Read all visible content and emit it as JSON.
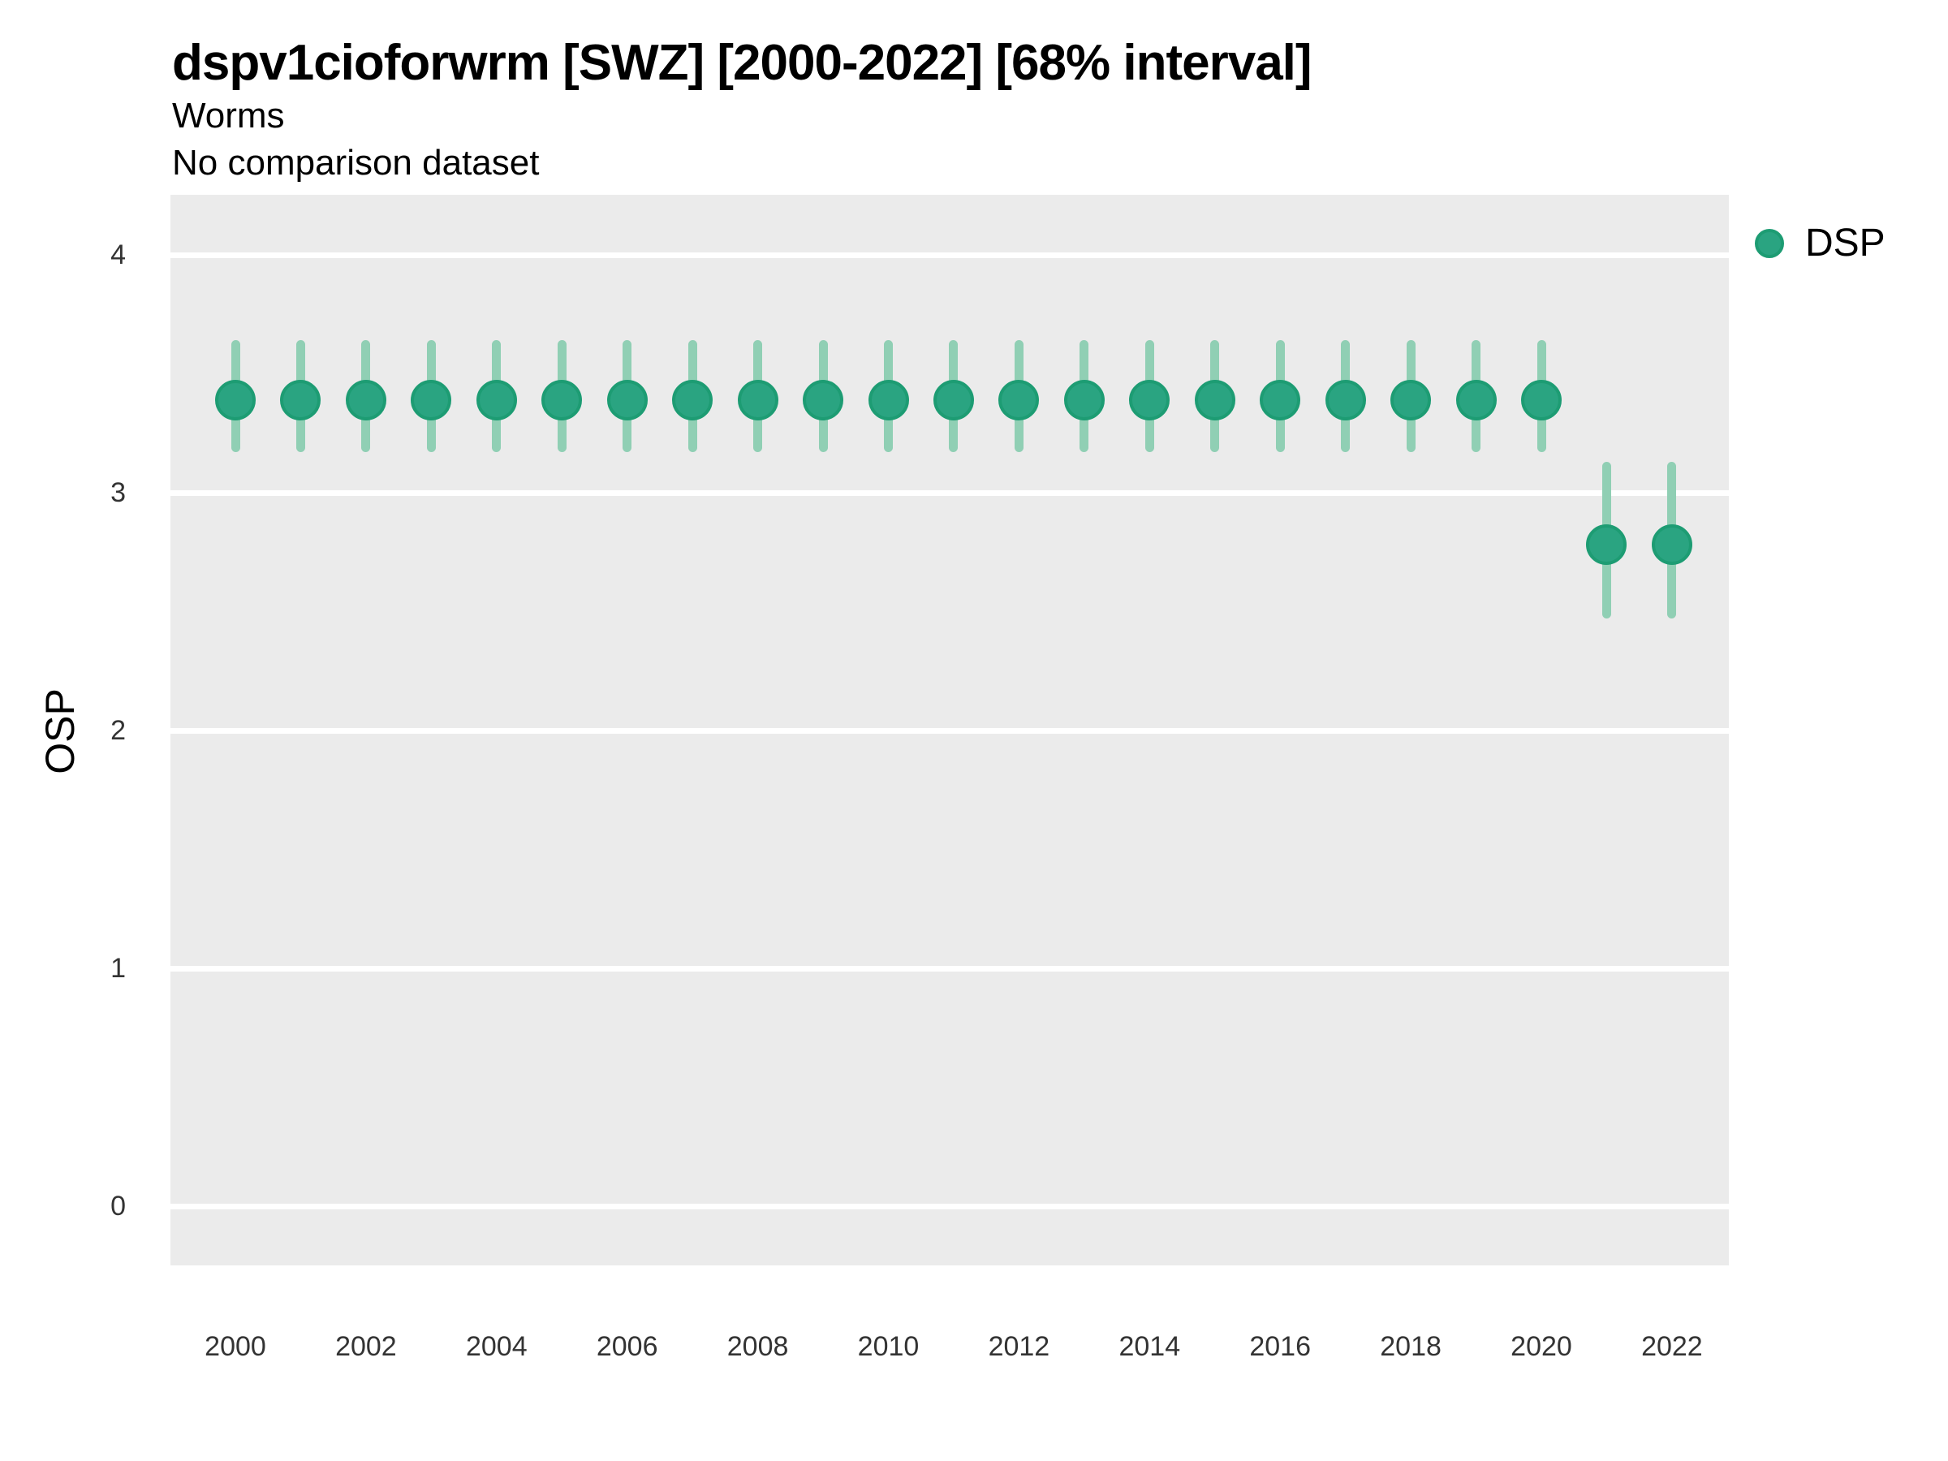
{
  "header": {
    "title": "dspv1cioforwrm [SWZ] [2000-2022] [68% interval]",
    "subtitle": "Worms",
    "note": "No comparison dataset"
  },
  "legend": {
    "items": [
      {
        "label": "DSP",
        "color": "#2AA481"
      }
    ],
    "position": "right"
  },
  "colors": {
    "point_fill": "#2AA481",
    "point_border": "#1D9C73",
    "interval_bar": "#90CFB4",
    "panel_background": "#EBEBEB",
    "gridline": "#FFFFFF",
    "title_text": "#000000",
    "tick_text": "#333333"
  },
  "chart_data": {
    "type": "scatter",
    "title": "dspv1cioforwrm [SWZ] [2000-2022] [68% interval]",
    "subtitle": "Worms",
    "note": "No comparison dataset",
    "interval_label": "68% interval",
    "xlabel": "",
    "ylabel": "OSP",
    "ylim": [
      -0.25,
      4.25
    ],
    "xlim": [
      1999.0,
      2022.9
    ],
    "y_ticks": [
      0,
      1,
      2,
      3,
      4
    ],
    "x_ticks": [
      2000,
      2002,
      2004,
      2006,
      2008,
      2010,
      2012,
      2014,
      2016,
      2018,
      2020,
      2022
    ],
    "grid": "major-horizontal-only",
    "legend_position": "right",
    "series": [
      {
        "name": "DSP",
        "color": "#2AA481",
        "interval_color": "#90CFB4",
        "x": [
          2000,
          2001,
          2002,
          2003,
          2004,
          2005,
          2006,
          2007,
          2008,
          2009,
          2010,
          2011,
          2012,
          2013,
          2014,
          2015,
          2016,
          2017,
          2018,
          2019,
          2020,
          2021,
          2022
        ],
        "mid": [
          3.39,
          3.39,
          3.39,
          3.39,
          3.39,
          3.39,
          3.39,
          3.39,
          3.39,
          3.39,
          3.39,
          3.39,
          3.39,
          3.39,
          3.39,
          3.39,
          3.39,
          3.39,
          3.39,
          3.39,
          3.39,
          2.78,
          2.78
        ],
        "lo": [
          3.17,
          3.17,
          3.17,
          3.17,
          3.17,
          3.17,
          3.17,
          3.17,
          3.17,
          3.17,
          3.17,
          3.17,
          3.17,
          3.17,
          3.17,
          3.17,
          3.17,
          3.17,
          3.17,
          3.17,
          3.17,
          2.47,
          2.47
        ],
        "hi": [
          3.64,
          3.64,
          3.64,
          3.64,
          3.64,
          3.64,
          3.64,
          3.64,
          3.64,
          3.64,
          3.64,
          3.64,
          3.64,
          3.64,
          3.64,
          3.64,
          3.64,
          3.64,
          3.64,
          3.64,
          3.64,
          3.13,
          3.13
        ]
      }
    ]
  }
}
